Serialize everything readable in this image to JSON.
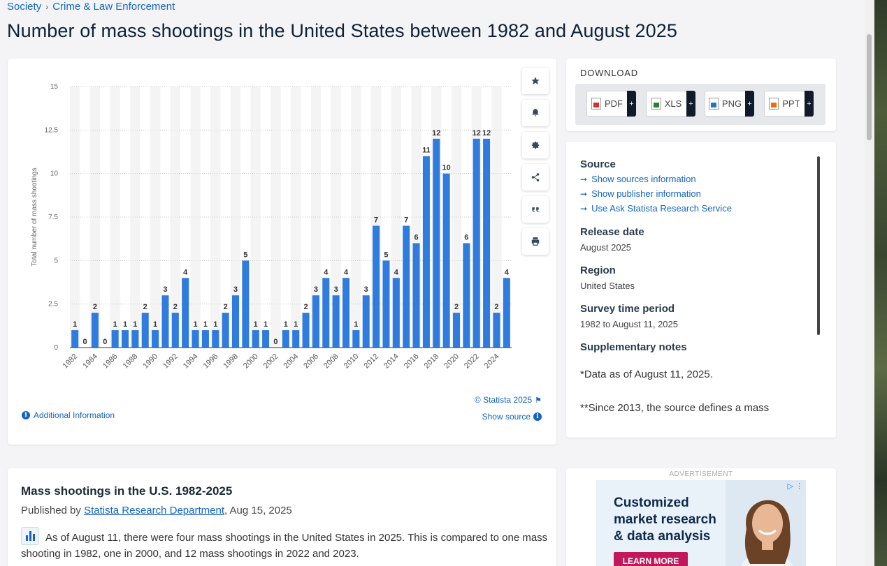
{
  "breadcrumb": {
    "items": [
      "Society",
      "Crime & Law Enforcement"
    ],
    "separator": "›"
  },
  "page_title": "Number of mass shootings in the United States between 1982 and August 2025",
  "chart": {
    "copyright": "© Statista 2025",
    "show_source": "Show source",
    "additional_info": "Additional Information",
    "tools": [
      "star-icon",
      "bell-icon",
      "gear-icon",
      "share-icon",
      "quote-icon",
      "print-icon"
    ]
  },
  "chart_data": {
    "type": "bar",
    "ylabel": "Total number of mass shootings",
    "ylim": [
      0,
      15
    ],
    "yticks": [
      "0",
      "2.5",
      "5",
      "7.5",
      "10",
      "12.5",
      "15"
    ],
    "grid": true,
    "bar_color": "#2f7bde",
    "categories": [
      "1982",
      "1983",
      "1984",
      "1985",
      "1986",
      "1987",
      "1988",
      "1989",
      "1990",
      "1991",
      "1992",
      "1993",
      "1994",
      "1995",
      "1996",
      "1997",
      "1998",
      "1999",
      "2000",
      "2001",
      "2002",
      "2003",
      "2004",
      "2005",
      "2006",
      "2007",
      "2008",
      "2009",
      "2010",
      "2011",
      "2012",
      "2013",
      "2014",
      "2015",
      "2016",
      "2017",
      "2018",
      "2019",
      "2020",
      "2021",
      "2022",
      "2023",
      "2024",
      "2025"
    ],
    "values": [
      1,
      0,
      2,
      0,
      1,
      1,
      1,
      2,
      1,
      3,
      2,
      4,
      1,
      1,
      1,
      2,
      3,
      5,
      1,
      1,
      0,
      1,
      1,
      2,
      3,
      4,
      3,
      4,
      1,
      3,
      7,
      5,
      4,
      7,
      6,
      11,
      12,
      10,
      2,
      6,
      12,
      12,
      2,
      4
    ],
    "xtick_labels": [
      "1982",
      "1984",
      "1986",
      "1988",
      "1990",
      "1992",
      "1994",
      "1996",
      "1998",
      "2000",
      "2002",
      "2004",
      "2006",
      "2008",
      "2010",
      "2012",
      "2014",
      "2016",
      "2018",
      "2020",
      "2022",
      "2024"
    ]
  },
  "download": {
    "title": "DOWNLOAD",
    "buttons": [
      {
        "label": "PDF",
        "icon": "pdf-file-icon"
      },
      {
        "label": "XLS",
        "icon": "xls-file-icon"
      },
      {
        "label": "PNG",
        "icon": "png-file-icon"
      },
      {
        "label": "PPT",
        "icon": "ppt-file-icon"
      }
    ],
    "plus": "+"
  },
  "details": {
    "source_heading": "Source",
    "source_links": [
      "Show sources information",
      "Show publisher information",
      "Use Ask Statista Research Service"
    ],
    "release_heading": "Release date",
    "release_value": "August 2025",
    "region_heading": "Region",
    "region_value": "United States",
    "survey_heading": "Survey time period",
    "survey_value": "1982 to August 11, 2025",
    "notes_heading": "Supplementary notes",
    "note_1": "*Data as of August 11, 2025.",
    "note_2": "**Since 2013, the source defines a mass"
  },
  "article": {
    "title": "Mass shootings in the U.S. 1982-2025",
    "published_by": "Published by",
    "publisher": "Statista Research Department",
    "date": ", Aug 15, 2025",
    "text": "As of August 11, there were four mass shootings in the United States in 2025. This is compared to one mass shooting in 1982, one in 2000, and 12 mass shootings in 2022 and 2023."
  },
  "ad": {
    "label": "ADVERTISEMENT",
    "headline": "Customized\nmarket research\n& data analysis",
    "cta": "LEARN MORE"
  }
}
